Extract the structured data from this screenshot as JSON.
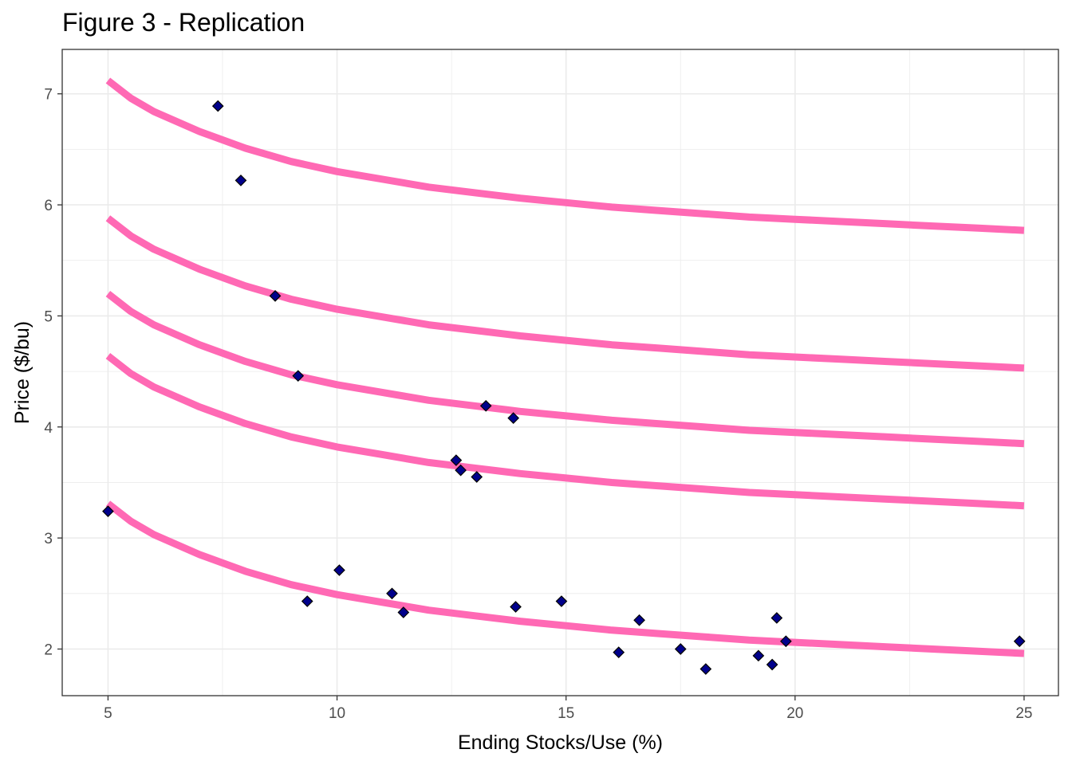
{
  "chart_data": {
    "type": "scatter",
    "title": "Figure 3 - Replication",
    "xlabel": "Ending Stocks/Use (%)",
    "ylabel": "Price ($/bu)",
    "xlim": [
      4.0,
      25.75
    ],
    "ylim": [
      1.58,
      7.4
    ],
    "x_ticks": [
      5,
      10,
      15,
      20,
      25
    ],
    "y_ticks": [
      2,
      3,
      4,
      5,
      6,
      7
    ],
    "grid": true,
    "legend": "none",
    "colors": {
      "curve": "#ff69b4",
      "point": "#00008b",
      "panel_border": "#333333",
      "grid": "#ebebeb"
    },
    "curves": [
      {
        "x": [
          5,
          5.5,
          6,
          7,
          8,
          9,
          10,
          11,
          12,
          13,
          14,
          15,
          16,
          17,
          18,
          19,
          20,
          21,
          22,
          23,
          24,
          25
        ],
        "y": [
          7.12,
          6.96,
          6.84,
          6.66,
          6.51,
          6.39,
          6.3,
          6.23,
          6.16,
          6.11,
          6.06,
          6.02,
          5.98,
          5.95,
          5.92,
          5.89,
          5.87,
          5.85,
          5.83,
          5.81,
          5.79,
          5.77
        ]
      },
      {
        "x": [
          5,
          5.5,
          6,
          7,
          8,
          9,
          10,
          11,
          12,
          13,
          14,
          15,
          16,
          17,
          18,
          19,
          20,
          21,
          22,
          23,
          24,
          25
        ],
        "y": [
          5.88,
          5.72,
          5.6,
          5.42,
          5.27,
          5.15,
          5.06,
          4.99,
          4.92,
          4.87,
          4.82,
          4.78,
          4.74,
          4.71,
          4.68,
          4.65,
          4.63,
          4.61,
          4.59,
          4.57,
          4.55,
          4.53
        ]
      },
      {
        "x": [
          5,
          5.5,
          6,
          7,
          8,
          9,
          10,
          11,
          12,
          13,
          14,
          15,
          16,
          17,
          18,
          19,
          20,
          21,
          22,
          23,
          24,
          25
        ],
        "y": [
          5.2,
          5.04,
          4.92,
          4.74,
          4.59,
          4.47,
          4.38,
          4.31,
          4.24,
          4.19,
          4.14,
          4.1,
          4.06,
          4.03,
          4.0,
          3.97,
          3.95,
          3.93,
          3.91,
          3.89,
          3.87,
          3.85
        ]
      },
      {
        "x": [
          5,
          5.5,
          6,
          7,
          8,
          9,
          10,
          11,
          12,
          13,
          14,
          15,
          16,
          17,
          18,
          19,
          20,
          21,
          22,
          23,
          24,
          25
        ],
        "y": [
          4.64,
          4.48,
          4.36,
          4.18,
          4.03,
          3.91,
          3.82,
          3.75,
          3.68,
          3.63,
          3.58,
          3.54,
          3.5,
          3.47,
          3.44,
          3.41,
          3.39,
          3.37,
          3.35,
          3.33,
          3.31,
          3.29
        ]
      },
      {
        "x": [
          5,
          5.5,
          6,
          7,
          8,
          9,
          10,
          11,
          12,
          13,
          14,
          15,
          16,
          17,
          18,
          19,
          20,
          21,
          22,
          23,
          24,
          25
        ],
        "y": [
          3.31,
          3.15,
          3.03,
          2.85,
          2.7,
          2.58,
          2.49,
          2.42,
          2.35,
          2.3,
          2.25,
          2.21,
          2.17,
          2.14,
          2.11,
          2.08,
          2.06,
          2.04,
          2.02,
          2.0,
          1.98,
          1.96
        ]
      }
    ],
    "points": {
      "x": [
        7.4,
        7.9,
        8.65,
        9.15,
        5.0,
        9.35,
        10.05,
        11.2,
        11.45,
        12.6,
        12.7,
        13.05,
        13.25,
        13.85,
        13.9,
        14.9,
        16.15,
        16.6,
        17.5,
        18.05,
        19.2,
        19.5,
        19.6,
        19.8,
        24.9
      ],
      "y": [
        6.89,
        6.22,
        5.18,
        4.46,
        3.24,
        2.43,
        2.71,
        2.5,
        2.33,
        3.7,
        3.61,
        3.55,
        4.19,
        4.08,
        2.38,
        2.43,
        1.97,
        2.26,
        2.0,
        1.82,
        1.94,
        1.86,
        2.28,
        2.07,
        2.07
      ]
    }
  }
}
